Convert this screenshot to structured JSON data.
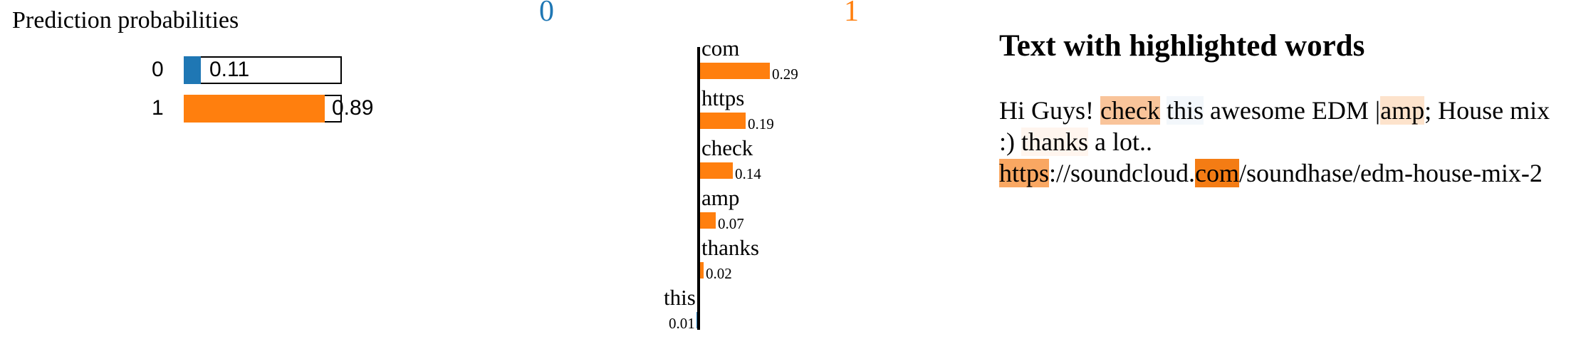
{
  "predict_proba": {
    "title": "Prediction probabilities",
    "rows": [
      {
        "label": "0",
        "value": "0.11",
        "prob": 0.11,
        "color": "#1f77b4"
      },
      {
        "label": "1",
        "value": "0.89",
        "prob": 0.89,
        "color": "#ff7f0e"
      }
    ]
  },
  "explanation": {
    "class_left": {
      "label": "0",
      "color": "#1f77b4"
    },
    "class_right": {
      "label": "1",
      "color": "#ff7f0e"
    }
  },
  "chart_data": {
    "type": "bar",
    "categories": [
      "com",
      "https",
      "check",
      "amp",
      "thanks",
      "this"
    ],
    "values": [
      0.29,
      0.19,
      0.14,
      0.07,
      0.02,
      -0.01
    ],
    "value_labels": [
      "0.29",
      "0.19",
      "0.14",
      "0.07",
      "0.02",
      "0.01"
    ],
    "positive_color": "#ff7f0e",
    "negative_color": "#1f77b4",
    "orientation": "horizontal"
  },
  "highlighted_text": {
    "title": "Text with highlighted words",
    "tokens": [
      {
        "text": "Hi Guys! ",
        "bg": ""
      },
      {
        "text": "check",
        "bg": "#f9c49a"
      },
      {
        "text": " ",
        "bg": ""
      },
      {
        "text": "this",
        "bg": "#f3f7fb"
      },
      {
        "text": " awesome EDM |",
        "bg": ""
      },
      {
        "text": "amp",
        "bg": "#fde3cc"
      },
      {
        "text": "; House mix :) ",
        "bg": ""
      },
      {
        "text": "thanks",
        "bg": "#fff5ee"
      },
      {
        "text": " a lot.. ",
        "bg": ""
      },
      {
        "text": "https",
        "bg": "#f9a762"
      },
      {
        "text": "://soundcloud.",
        "bg": ""
      },
      {
        "text": "com",
        "bg": "#f47c14"
      },
      {
        "text": "/soundhase/edm-house-mix-2",
        "bg": ""
      }
    ]
  }
}
